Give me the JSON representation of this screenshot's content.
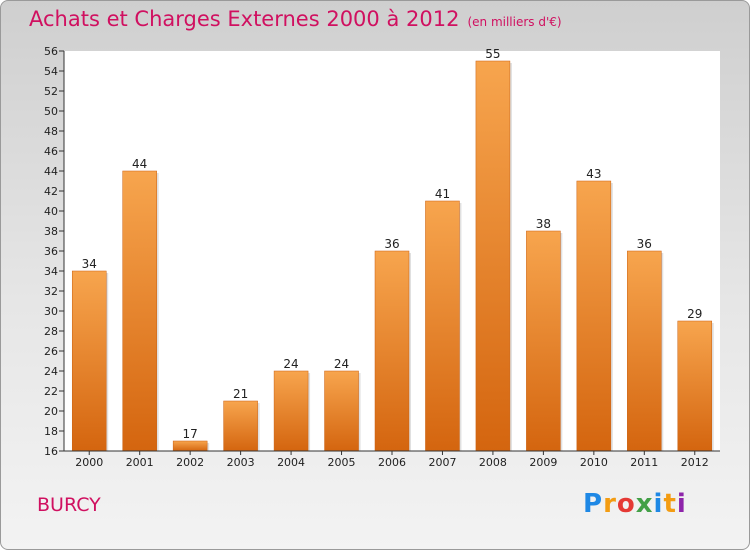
{
  "header": {
    "title": "Achats et Charges Externes 2000 à 2012",
    "unit": "(en milliers d'€)"
  },
  "footer": {
    "commune": "BURCY",
    "brand": [
      "P",
      "r",
      "o",
      "x",
      "i",
      "t",
      "i"
    ],
    "brand_colors": [
      "#1e88e5",
      "#f39c12",
      "#e53935",
      "#43a047",
      "#1e88e5",
      "#f39c12",
      "#8e24aa"
    ]
  },
  "colors": {
    "title": "#d01060",
    "bar_top": "#f7a54e",
    "bar_bottom": "#d4650f"
  },
  "chart_data": {
    "type": "bar",
    "title": "Achats et Charges Externes 2000 à 2012",
    "xlabel": "",
    "ylabel": "",
    "categories": [
      "2000",
      "2001",
      "2002",
      "2003",
      "2004",
      "2005",
      "2006",
      "2007",
      "2008",
      "2009",
      "2010",
      "2011",
      "2012"
    ],
    "values": [
      34,
      44,
      17,
      21,
      24,
      24,
      36,
      41,
      55,
      38,
      43,
      36,
      29
    ],
    "ylim": [
      16,
      56
    ],
    "yticks": [
      16,
      18,
      20,
      22,
      24,
      26,
      28,
      30,
      32,
      34,
      36,
      38,
      40,
      42,
      44,
      46,
      48,
      50,
      52,
      54,
      56
    ],
    "grid": false,
    "legend": "none"
  }
}
